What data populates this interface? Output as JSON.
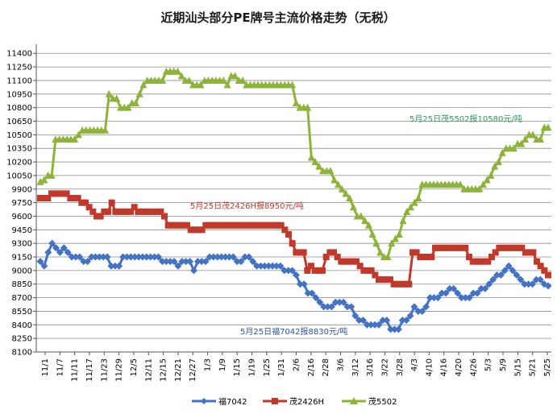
{
  "chart_data": {
    "type": "line",
    "title": "近期汕头部分PE牌号主流价格走势（无税）",
    "xlabel": "",
    "ylabel": "",
    "ylim": [
      8100,
      11500
    ],
    "yticks": [
      8100,
      8250,
      8400,
      8550,
      8700,
      8850,
      9000,
      9150,
      9300,
      9450,
      9600,
      9750,
      9900,
      10050,
      10200,
      10350,
      10500,
      10650,
      10800,
      10950,
      11100,
      11250,
      11400
    ],
    "xticklabels": [
      "11/1",
      "11/7",
      "11/11",
      "11/17",
      "11/23",
      "11/29",
      "12/5",
      "12/11",
      "12/15",
      "12/21",
      "12/27",
      "1/3",
      "1/9",
      "1/15",
      "1/19",
      "1/25",
      "1/31",
      "2/6",
      "2/16",
      "2/28",
      "3/6",
      "3/12",
      "3/16",
      "3/22",
      "3/28",
      "4/3",
      "4/10",
      "4/16",
      "4/20",
      "4/26",
      "5/3",
      "5/9",
      "5/15",
      "5/21",
      "5/25"
    ],
    "grid": true,
    "legend_position": "bottom",
    "colors": {
      "fu7042": "#4472c4",
      "mao2426h": "#c0392b",
      "mao5502": "#8db33a"
    },
    "series": [
      {
        "name": "福7042",
        "color": "#4472c4",
        "marker": "diamond",
        "values": [
          9100,
          9050,
          9200,
          9300,
          9250,
          9200,
          9250,
          9200,
          9150,
          9150,
          9150,
          9100,
          9100,
          9150,
          9150,
          9150,
          9150,
          9150,
          9050,
          9050,
          9050,
          9150,
          9150,
          9150,
          9150,
          9150,
          9150,
          9150,
          9150,
          9150,
          9150,
          9100,
          9100,
          9100,
          9100,
          9050,
          9100,
          9100,
          9100,
          9000,
          9100,
          9100,
          9100,
          9150,
          9150,
          9150,
          9150,
          9150,
          9150,
          9150,
          9100,
          9100,
          9150,
          9150,
          9100,
          9050,
          9050,
          9050,
          9050,
          9050,
          9050,
          9050,
          9000,
          9000,
          9000,
          8950,
          8850,
          8850,
          8750,
          8750,
          8700,
          8650,
          8600,
          8600,
          8600,
          8650,
          8650,
          8650,
          8600,
          8600,
          8500,
          8450,
          8450,
          8400,
          8400,
          8400,
          8400,
          8450,
          8450,
          8350,
          8350,
          8350,
          8450,
          8450,
          8500,
          8600,
          8550,
          8550,
          8600,
          8700,
          8700,
          8700,
          8750,
          8750,
          8800,
          8800,
          8750,
          8700,
          8700,
          8700,
          8750,
          8750,
          8800,
          8800,
          8850,
          8900,
          8950,
          8950,
          9000,
          9050,
          9000,
          8950,
          8900,
          8850,
          8850,
          8850,
          8900,
          8900,
          8850,
          8830
        ]
      },
      {
        "name": "茂2426H",
        "color": "#c0392b",
        "marker": "square",
        "values": [
          9800,
          9800,
          9800,
          9850,
          9850,
          9850,
          9850,
          9850,
          9800,
          9800,
          9800,
          9750,
          9750,
          9700,
          9650,
          9600,
          9600,
          9650,
          9650,
          9750,
          9650,
          9650,
          9650,
          9650,
          9650,
          9700,
          9650,
          9650,
          9650,
          9650,
          9650,
          9650,
          9650,
          9600,
          9500,
          9500,
          9500,
          9500,
          9500,
          9500,
          9450,
          9450,
          9450,
          9450,
          9500,
          9500,
          9500,
          9500,
          9500,
          9500,
          9500,
          9500,
          9500,
          9500,
          9500,
          9500,
          9500,
          9500,
          9500,
          9500,
          9500,
          9500,
          9500,
          9500,
          9500,
          9450,
          9400,
          9300,
          9200,
          9200,
          9200,
          9000,
          9050,
          9000,
          9000,
          9000,
          9150,
          9200,
          9200,
          9150,
          9100,
          9100,
          9100,
          9100,
          9100,
          9050,
          9000,
          9000,
          9000,
          8950,
          8900,
          8900,
          8900,
          8900,
          8850,
          8850,
          8850,
          8850,
          8850,
          9200,
          9200,
          9150,
          9150,
          9150,
          9150,
          9250,
          9250,
          9250,
          9250,
          9250,
          9250,
          9250,
          9250,
          9250,
          9150,
          9100,
          9100,
          9100,
          9100,
          9100,
          9150,
          9200,
          9250,
          9250,
          9250,
          9250,
          9250,
          9250,
          9250,
          9200,
          9200,
          9200,
          9100,
          9050,
          9000,
          8950
        ]
      },
      {
        "name": "茂5502",
        "color": "#8db33a",
        "marker": "triangle",
        "values": [
          9980,
          10000,
          10050,
          10050,
          10450,
          10450,
          10450,
          10450,
          10450,
          10450,
          10500,
          10550,
          10550,
          10550,
          10550,
          10550,
          10550,
          10550,
          10950,
          10900,
          10900,
          10800,
          10800,
          10800,
          10850,
          10850,
          10950,
          11050,
          11100,
          11100,
          11100,
          11100,
          11100,
          11200,
          11200,
          11200,
          11200,
          11150,
          11100,
          11100,
          11050,
          11050,
          11050,
          11100,
          11100,
          11100,
          11100,
          11100,
          11100,
          11050,
          11150,
          11150,
          11100,
          11100,
          11050,
          11050,
          11050,
          11050,
          11050,
          11050,
          11050,
          11050,
          11050,
          11050,
          11050,
          11050,
          11050,
          10850,
          10800,
          10800,
          10800,
          10250,
          10200,
          10150,
          10100,
          10100,
          10100,
          10000,
          9950,
          9900,
          9850,
          9800,
          9700,
          9600,
          9600,
          9550,
          9500,
          9400,
          9300,
          9200,
          9150,
          9150,
          9300,
          9350,
          9400,
          9550,
          9650,
          9700,
          9750,
          9800,
          9950,
          9950,
          9950,
          9950,
          9950,
          9950,
          9950,
          9950,
          9950,
          9950,
          9950,
          9900,
          9900,
          9900,
          9900,
          9900,
          9950,
          10000,
          10050,
          10150,
          10200,
          10300,
          10350,
          10350,
          10350,
          10400,
          10400,
          10450,
          10500,
          10500,
          10450,
          10450,
          10580,
          10580
        ]
      }
    ],
    "annotations": [
      {
        "text": "5月25日茂5502报10580元/吨",
        "series": "茂5502",
        "color": "#2e9a55"
      },
      {
        "text": "5月25日茂2426H报8950元/吨",
        "series": "茂2426H",
        "color": "#c0392b"
      },
      {
        "text": "5月25日福7042报8830元/吨",
        "series": "福7042",
        "color": "#2f5597"
      }
    ]
  }
}
